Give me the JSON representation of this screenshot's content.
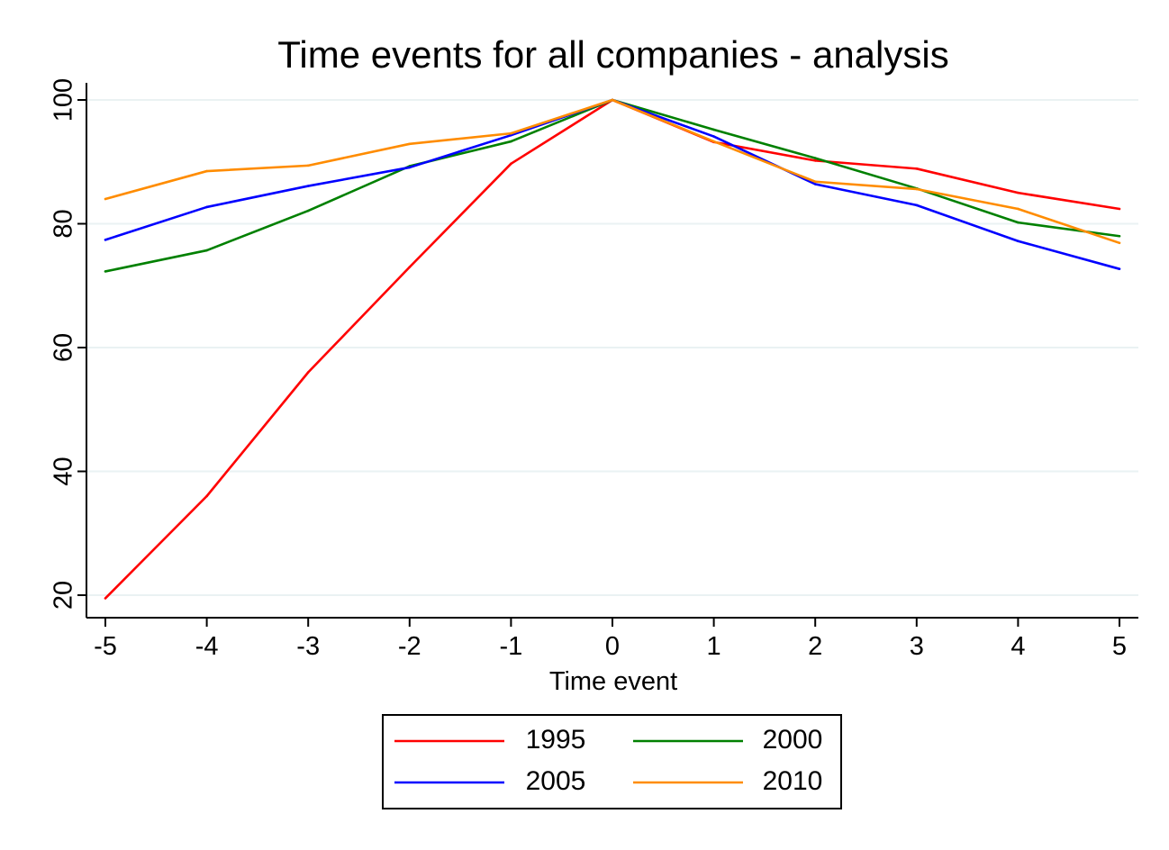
{
  "chart_data": {
    "type": "line",
    "title": "Time events for all companies - analysis",
    "xlabel": "Time event",
    "ylabel": "",
    "x": [
      -5,
      -4,
      -3,
      -2,
      -1,
      0,
      1,
      2,
      3,
      4,
      5
    ],
    "x_ticks": [
      "-5",
      "-4",
      "-3",
      "-2",
      "-1",
      "0",
      "1",
      "2",
      "3",
      "4",
      "5"
    ],
    "y_ticks": [
      "20",
      "40",
      "60",
      "80",
      "100"
    ],
    "xlim": [
      -5,
      5
    ],
    "ylim": [
      20,
      100
    ],
    "grid": "horizontal",
    "legend": "bottom",
    "series": [
      {
        "name": "1995",
        "color": "#ff0000",
        "values": [
          19.5,
          36.0,
          56.0,
          73.0,
          89.7,
          100.0,
          93.2,
          90.2,
          88.9,
          85.0,
          82.4
        ]
      },
      {
        "name": "2000",
        "color": "#008000",
        "values": [
          72.3,
          75.7,
          82.1,
          89.3,
          93.3,
          100.0,
          95.2,
          90.6,
          85.7,
          80.2,
          78.0
        ]
      },
      {
        "name": "2005",
        "color": "#0000ff",
        "values": [
          77.4,
          82.7,
          86.1,
          89.1,
          94.3,
          100.0,
          94.1,
          86.4,
          83.0,
          77.2,
          72.7
        ]
      },
      {
        "name": "2010",
        "color": "#ff8c00",
        "values": [
          84.0,
          88.5,
          89.4,
          92.9,
          94.6,
          100.0,
          93.3,
          86.8,
          85.6,
          82.4,
          76.9
        ]
      }
    ]
  }
}
